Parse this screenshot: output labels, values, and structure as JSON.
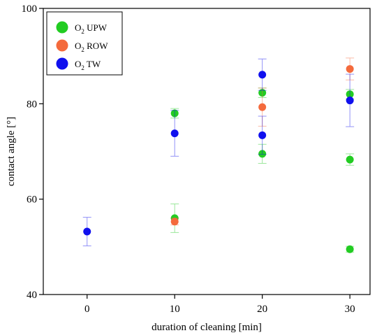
{
  "chart_data": {
    "type": "scatter",
    "title": "",
    "xlabel": "duration of cleaning [min]",
    "ylabel": "contact angle [°]",
    "xlim": [
      -5,
      32.3
    ],
    "ylim": [
      40,
      100
    ],
    "x_ticks": [
      0,
      10,
      20,
      30
    ],
    "y_ticks": [
      40,
      60,
      80,
      100
    ],
    "legend_position": "top-left",
    "grid": false,
    "series": [
      {
        "name": "O2 UPW",
        "legend_text": "O",
        "legend_sub": "2",
        "legend_suffix": " UPW",
        "color": "#22cc22",
        "points": [
          {
            "x": 10,
            "y": 78.0,
            "err": 1.0
          },
          {
            "x": 10,
            "y": 56.0,
            "err": 3.0
          },
          {
            "x": 20,
            "y": 82.3,
            "err": 1.0
          },
          {
            "x": 20,
            "y": 69.5,
            "err": 2.0
          },
          {
            "x": 30,
            "y": 82.0,
            "err": 1.0
          },
          {
            "x": 30,
            "y": 68.3,
            "err": 1.2
          },
          {
            "x": 30,
            "y": 49.5,
            "err": 0.6
          }
        ]
      },
      {
        "name": "O2 ROW",
        "legend_text": "O",
        "legend_sub": "2",
        "legend_suffix": " ROW",
        "color": "#f46a3c",
        "points": [
          {
            "x": 10,
            "y": 55.3,
            "err": 0.7
          },
          {
            "x": 20,
            "y": 79.3,
            "err": 4.0
          },
          {
            "x": 30,
            "y": 87.3,
            "err": 2.3
          }
        ]
      },
      {
        "name": "O2 TW",
        "legend_text": "O",
        "legend_sub": "2",
        "legend_suffix": " TW",
        "color": "#1010ee",
        "points": [
          {
            "x": 0,
            "y": 53.2,
            "err": 3.0
          },
          {
            "x": 10,
            "y": 73.8,
            "err": 4.8
          },
          {
            "x": 20,
            "y": 86.1,
            "err": 3.3
          },
          {
            "x": 20,
            "y": 73.4,
            "err": 4.0
          },
          {
            "x": 30,
            "y": 80.7,
            "err": 5.5
          }
        ]
      }
    ]
  }
}
